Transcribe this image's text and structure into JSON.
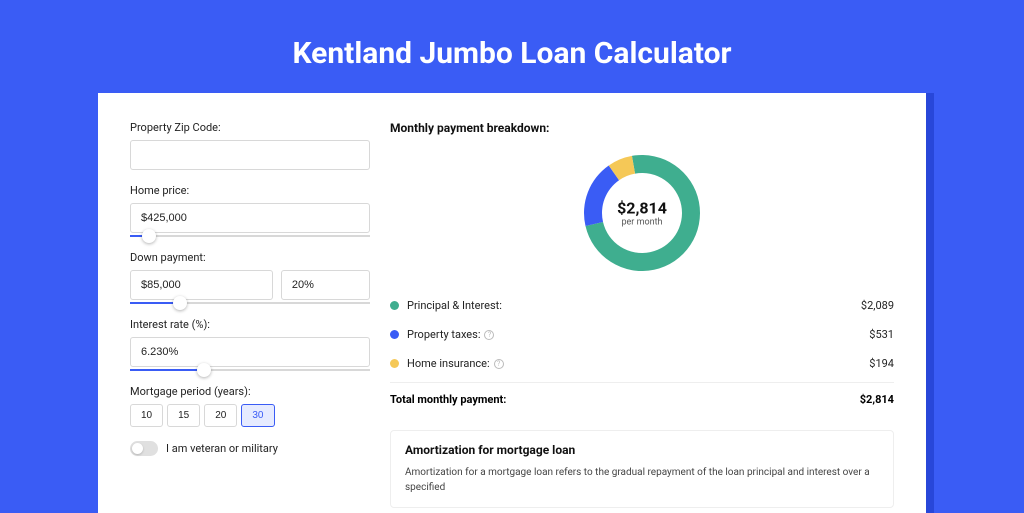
{
  "title": "Kentland Jumbo Loan Calculator",
  "colors": {
    "page_bg": "#3a5cf5",
    "card_shadow": "#2847d9",
    "card_bg": "#ffffff",
    "accent": "#3a5cf5"
  },
  "form": {
    "zip_label": "Property Zip Code:",
    "zip_value": "",
    "home_price_label": "Home price:",
    "home_price_value": "$425,000",
    "home_price_slider_pct": 8,
    "down_label": "Down payment:",
    "down_value": "$85,000",
    "down_pct": "20%",
    "down_slider_pct": 21,
    "rate_label": "Interest rate (%):",
    "rate_value": "6.230%",
    "rate_slider_pct": 31,
    "period_label": "Mortgage period (years):",
    "period_options": [
      "10",
      "15",
      "20",
      "30"
    ],
    "period_selected": "30",
    "veteran_label": "I am veteran or military",
    "veteran_on": false
  },
  "breakdown": {
    "title": "Monthly payment breakdown:",
    "donut": {
      "amount": "$2,814",
      "sub": "per month",
      "slices": [
        {
          "key": "pi",
          "color": "#3fae8f",
          "start": -10,
          "end": 257
        },
        {
          "key": "tax",
          "color": "#3a5cf5",
          "start": 257,
          "end": 325
        },
        {
          "key": "ins",
          "color": "#f5c857",
          "start": 325,
          "end": 350
        }
      ],
      "thickness": 18
    },
    "items": [
      {
        "color": "#3fae8f",
        "label": "Principal & Interest:",
        "info": false,
        "value": "$2,089"
      },
      {
        "color": "#3a5cf5",
        "label": "Property taxes:",
        "info": true,
        "value": "$531"
      },
      {
        "color": "#f5c857",
        "label": "Home insurance:",
        "info": true,
        "value": "$194"
      }
    ],
    "total_label": "Total monthly payment:",
    "total_value": "$2,814"
  },
  "amortization": {
    "title": "Amortization for mortgage loan",
    "text": "Amortization for a mortgage loan refers to the gradual repayment of the loan principal and interest over a specified"
  }
}
